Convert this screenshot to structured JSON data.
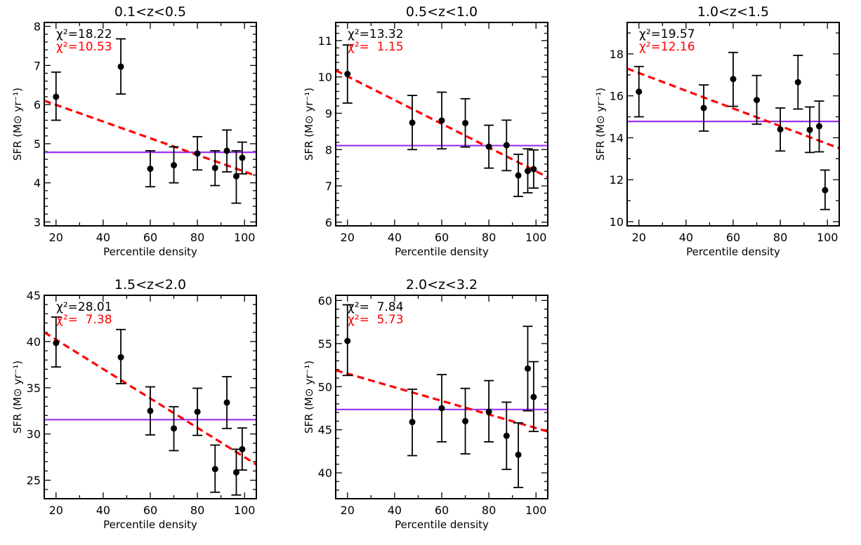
{
  "colors": {
    "data": "#000000",
    "fit": "#ff0000",
    "mean": "#9b30f0"
  },
  "chart_data": [
    {
      "type": "scatter",
      "title": "0.1<z<0.5",
      "xlabel": "Percentile density",
      "ylabel": "SFR (M⊙ yr⁻¹)",
      "xlim": [
        15,
        105
      ],
      "ylim": [
        2.9,
        8.1
      ],
      "xticks": [
        20,
        40,
        60,
        80,
        100
      ],
      "yticks": [
        3,
        4,
        5,
        6,
        7,
        8
      ],
      "yminor": 0.2,
      "chi2_const": "χ²=18.22",
      "chi2_linear": "χ²=10.53",
      "points": [
        {
          "x": 20,
          "y": 6.2,
          "lo": 5.6,
          "hi": 6.83
        },
        {
          "x": 47.5,
          "y": 6.97,
          "lo": 6.27,
          "hi": 7.68
        },
        {
          "x": 60,
          "y": 4.36,
          "lo": 3.9,
          "hi": 4.82
        },
        {
          "x": 70,
          "y": 4.45,
          "lo": 4.0,
          "hi": 4.92
        },
        {
          "x": 80,
          "y": 4.75,
          "lo": 4.33,
          "hi": 5.18
        },
        {
          "x": 87.5,
          "y": 4.38,
          "lo": 3.93,
          "hi": 4.82
        },
        {
          "x": 92.5,
          "y": 4.82,
          "lo": 4.28,
          "hi": 5.35
        },
        {
          "x": 96.5,
          "y": 4.17,
          "lo": 3.48,
          "hi": 4.82
        },
        {
          "x": 99,
          "y": 4.64,
          "lo": 4.23,
          "hi": 5.04
        }
      ],
      "mean_line": 4.78,
      "fit_line": [
        [
          15,
          6.1
        ],
        [
          105,
          4.18
        ]
      ]
    },
    {
      "type": "scatter",
      "title": "0.5<z<1.0",
      "xlabel": "Percentile density",
      "ylabel": "SFR (M⊙ yr⁻¹)",
      "xlim": [
        15,
        105
      ],
      "ylim": [
        5.9,
        11.5
      ],
      "xticks": [
        20,
        40,
        60,
        80,
        100
      ],
      "yticks": [
        6,
        7,
        8,
        9,
        10,
        11
      ],
      "yminor": 0.2,
      "chi2_const": "χ²=13.32",
      "chi2_linear": "χ²=  1.15",
      "points": [
        {
          "x": 20,
          "y": 10.08,
          "lo": 9.28,
          "hi": 10.88
        },
        {
          "x": 47.5,
          "y": 8.74,
          "lo": 8.0,
          "hi": 9.49
        },
        {
          "x": 60,
          "y": 8.8,
          "lo": 8.02,
          "hi": 9.58
        },
        {
          "x": 70,
          "y": 8.73,
          "lo": 8.07,
          "hi": 9.4
        },
        {
          "x": 80,
          "y": 8.08,
          "lo": 7.49,
          "hi": 8.67
        },
        {
          "x": 87.5,
          "y": 8.12,
          "lo": 7.42,
          "hi": 8.81
        },
        {
          "x": 92.5,
          "y": 7.29,
          "lo": 6.71,
          "hi": 7.87
        },
        {
          "x": 96.5,
          "y": 7.41,
          "lo": 6.81,
          "hi": 8.02
        },
        {
          "x": 99,
          "y": 7.46,
          "lo": 6.94,
          "hi": 7.99
        }
      ],
      "mean_line": 8.11,
      "fit_line": [
        [
          15,
          10.18
        ],
        [
          105,
          7.24
        ]
      ]
    },
    {
      "type": "scatter",
      "title": "1.0<z<1.5",
      "xlabel": "Percentile density",
      "ylabel": "SFR (M⊙ yr⁻¹)",
      "xlim": [
        15,
        105
      ],
      "ylim": [
        9.8,
        19.5
      ],
      "xticks": [
        20,
        40,
        60,
        80,
        100
      ],
      "yticks": [
        10,
        12,
        14,
        16,
        18
      ],
      "yminor": 1,
      "chi2_const": "χ²=19.57",
      "chi2_linear": "χ²=12.16",
      "points": [
        {
          "x": 20,
          "y": 16.2,
          "lo": 15.0,
          "hi": 17.4
        },
        {
          "x": 47.5,
          "y": 15.42,
          "lo": 14.32,
          "hi": 16.52
        },
        {
          "x": 60,
          "y": 16.8,
          "lo": 15.5,
          "hi": 18.07
        },
        {
          "x": 70,
          "y": 15.8,
          "lo": 14.65,
          "hi": 16.97
        },
        {
          "x": 80,
          "y": 14.4,
          "lo": 13.37,
          "hi": 15.42
        },
        {
          "x": 87.5,
          "y": 16.65,
          "lo": 15.37,
          "hi": 17.93
        },
        {
          "x": 92.5,
          "y": 14.38,
          "lo": 13.3,
          "hi": 15.47
        },
        {
          "x": 96.5,
          "y": 14.55,
          "lo": 13.33,
          "hi": 15.75
        },
        {
          "x": 99,
          "y": 11.5,
          "lo": 10.58,
          "hi": 12.46
        }
      ],
      "mean_line": 14.78,
      "fit_line": [
        [
          15,
          17.3
        ],
        [
          105,
          13.5
        ]
      ]
    },
    {
      "type": "scatter",
      "title": "1.5<z<2.0",
      "xlabel": "Percentile density",
      "ylabel": "SFR (M⊙ yr⁻¹)",
      "xlim": [
        15,
        105
      ],
      "ylim": [
        23,
        45
      ],
      "xticks": [
        20,
        40,
        60,
        80,
        100
      ],
      "yticks": [
        25,
        30,
        35,
        40,
        45
      ],
      "yminor": 1,
      "chi2_const": "χ²=28.01",
      "chi2_linear": "χ²=  7.38",
      "points": [
        {
          "x": 20,
          "y": 39.85,
          "lo": 37.25,
          "hi": 42.65
        },
        {
          "x": 47.5,
          "y": 38.3,
          "lo": 35.45,
          "hi": 41.3
        },
        {
          "x": 60,
          "y": 32.5,
          "lo": 29.9,
          "hi": 35.1
        },
        {
          "x": 70,
          "y": 30.6,
          "lo": 28.2,
          "hi": 32.95
        },
        {
          "x": 80,
          "y": 32.4,
          "lo": 29.85,
          "hi": 34.95
        },
        {
          "x": 87.5,
          "y": 26.2,
          "lo": 23.7,
          "hi": 28.8
        },
        {
          "x": 92.5,
          "y": 33.4,
          "lo": 30.6,
          "hi": 36.2
        },
        {
          "x": 96.5,
          "y": 25.85,
          "lo": 23.4,
          "hi": 28.35
        },
        {
          "x": 99,
          "y": 28.35,
          "lo": 26.1,
          "hi": 30.65
        }
      ],
      "mean_line": 31.55,
      "fit_line": [
        [
          15,
          41.0
        ],
        [
          105,
          26.7
        ]
      ]
    },
    {
      "type": "scatter",
      "title": "2.0<z<3.2",
      "xlabel": "Percentile density",
      "ylabel": "SFR (M⊙ yr⁻¹)",
      "xlim": [
        15,
        105
      ],
      "ylim": [
        37,
        60.6
      ],
      "xticks": [
        20,
        40,
        60,
        80,
        100
      ],
      "yticks": [
        40,
        45,
        50,
        55,
        60
      ],
      "yminor": 1,
      "chi2_const": "χ²=  7.84",
      "chi2_linear": "χ²=  5.73",
      "points": [
        {
          "x": 20,
          "y": 55.3,
          "lo": 51.3,
          "hi": 59.5
        },
        {
          "x": 47.5,
          "y": 45.9,
          "lo": 42.0,
          "hi": 49.7
        },
        {
          "x": 60,
          "y": 47.5,
          "lo": 43.6,
          "hi": 51.4
        },
        {
          "x": 70,
          "y": 46.0,
          "lo": 42.2,
          "hi": 49.8
        },
        {
          "x": 80,
          "y": 47.1,
          "lo": 43.6,
          "hi": 50.7
        },
        {
          "x": 87.5,
          "y": 44.3,
          "lo": 40.4,
          "hi": 48.2
        },
        {
          "x": 92.5,
          "y": 42.1,
          "lo": 38.3,
          "hi": 45.8
        },
        {
          "x": 96.5,
          "y": 52.1,
          "lo": 47.2,
          "hi": 57.0
        },
        {
          "x": 99,
          "y": 48.8,
          "lo": 44.8,
          "hi": 52.9
        }
      ],
      "mean_line": 47.35,
      "fit_line": [
        [
          15,
          51.9
        ],
        [
          105,
          44.8
        ]
      ]
    }
  ]
}
